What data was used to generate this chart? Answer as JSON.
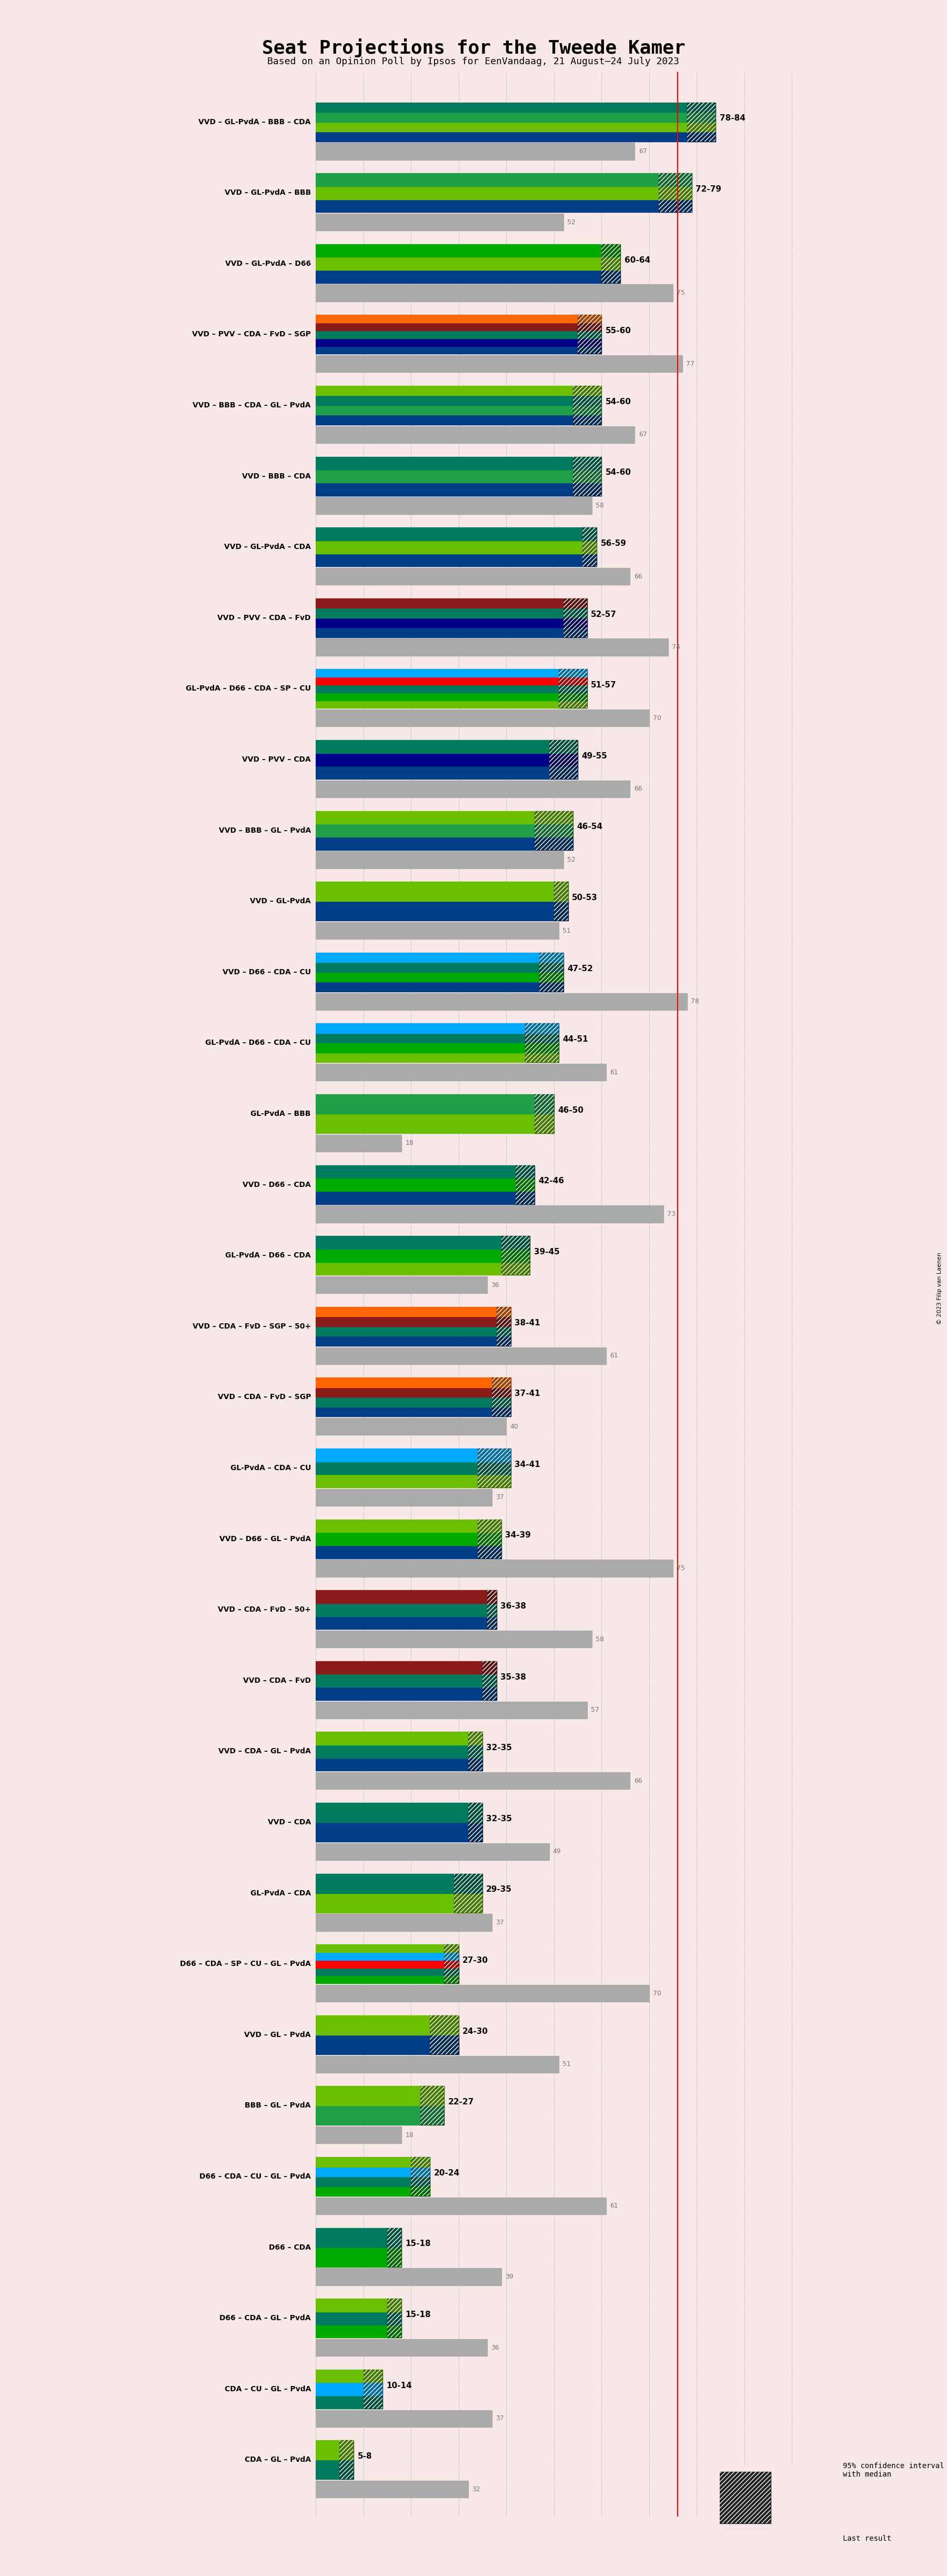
{
  "title": "Seat Projections for the Tweede Kamer",
  "subtitle": "Based on an Opinion Poll by Ipsos for EenVandaag, 21 August–24 July 2023",
  "copyright": "© 2023 Filip van Laenen",
  "background_color": "#f9e8e8",
  "bar_height": 0.35,
  "coalitions": [
    {
      "label": "VVD – GL-PvdA – BBB – CDA",
      "range": [
        78,
        84
      ],
      "last": 67,
      "parties": [
        "VVD",
        "GL",
        "BBB",
        "CDA"
      ]
    },
    {
      "label": "VVD – GL-PvdA – BBB",
      "range": [
        72,
        79
      ],
      "last": 52,
      "parties": [
        "VVD",
        "GL",
        "BBB"
      ]
    },
    {
      "label": "VVD – GL-PvdA – D66",
      "range": [
        60,
        64
      ],
      "last": 75,
      "parties": [
        "VVD",
        "GL",
        "D66"
      ]
    },
    {
      "label": "VVD – PVV – CDA – FvD – SGP",
      "range": [
        55,
        60
      ],
      "last": 77,
      "parties": [
        "VVD",
        "PVV",
        "CDA",
        "FvD",
        "SGP"
      ]
    },
    {
      "label": "VVD – BBB – CDA – GL – PvdA",
      "range": [
        54,
        60
      ],
      "last": 67,
      "parties": [
        "VVD",
        "BBB",
        "CDA",
        "GL"
      ]
    },
    {
      "label": "VVD – BBB – CDA",
      "range": [
        54,
        60
      ],
      "last": 58,
      "parties": [
        "VVD",
        "BBB",
        "CDA"
      ]
    },
    {
      "label": "VVD – GL-PvdA – CDA",
      "range": [
        56,
        59
      ],
      "last": 66,
      "parties": [
        "VVD",
        "GL",
        "CDA"
      ]
    },
    {
      "label": "VVD – PVV – CDA – FvD",
      "range": [
        52,
        57
      ],
      "last": 74,
      "parties": [
        "VVD",
        "PVV",
        "CDA",
        "FvD"
      ]
    },
    {
      "label": "GL-PvdA – D66 – CDA – SP – CU",
      "range": [
        51,
        57
      ],
      "last": 70,
      "parties": [
        "GL",
        "D66",
        "CDA",
        "SP",
        "CU"
      ]
    },
    {
      "label": "VVD – PVV – CDA",
      "range": [
        49,
        55
      ],
      "last": 66,
      "parties": [
        "VVD",
        "PVV",
        "CDA"
      ]
    },
    {
      "label": "VVD – BBB – GL – PvdA",
      "range": [
        46,
        54
      ],
      "last": 52,
      "parties": [
        "VVD",
        "BBB",
        "GL"
      ]
    },
    {
      "label": "VVD – GL-PvdA",
      "range": [
        50,
        53
      ],
      "last": 51,
      "parties": [
        "VVD",
        "GL"
      ]
    },
    {
      "label": "VVD – D66 – CDA – CU",
      "range": [
        47,
        52
      ],
      "last": 78,
      "parties": [
        "VVD",
        "D66",
        "CDA",
        "CU"
      ],
      "underline": true
    },
    {
      "label": "GL-PvdA – D66 – CDA – CU",
      "range": [
        44,
        51
      ],
      "last": 61,
      "parties": [
        "GL",
        "D66",
        "CDA",
        "CU"
      ]
    },
    {
      "label": "GL-PvdA – BBB",
      "range": [
        46,
        50
      ],
      "last": 18,
      "parties": [
        "GL",
        "BBB"
      ]
    },
    {
      "label": "VVD – D66 – CDA",
      "range": [
        42,
        46
      ],
      "last": 73,
      "parties": [
        "VVD",
        "D66",
        "CDA"
      ]
    },
    {
      "label": "GL-PvdA – D66 – CDA",
      "range": [
        39,
        45
      ],
      "last": 36,
      "parties": [
        "GL",
        "D66",
        "CDA"
      ]
    },
    {
      "label": "VVD – CDA – FvD – SGP – 50+",
      "range": [
        38,
        41
      ],
      "last": 61,
      "parties": [
        "VVD",
        "CDA",
        "FvD",
        "SGP"
      ]
    },
    {
      "label": "VVD – CDA – FvD – SGP",
      "range": [
        37,
        41
      ],
      "last": 40,
      "parties": [
        "VVD",
        "CDA",
        "FvD",
        "SGP"
      ]
    },
    {
      "label": "GL-PvdA – CDA – CU",
      "range": [
        34,
        41
      ],
      "last": 37,
      "parties": [
        "GL",
        "CDA",
        "CU"
      ]
    },
    {
      "label": "VVD – D66 – GL – PvdA",
      "range": [
        34,
        39
      ],
      "last": 75,
      "parties": [
        "VVD",
        "D66",
        "GL"
      ]
    },
    {
      "label": "VVD – CDA – FvD – 50+",
      "range": [
        36,
        38
      ],
      "last": 58,
      "parties": [
        "VVD",
        "CDA",
        "FvD"
      ]
    },
    {
      "label": "VVD – CDA – FvD",
      "range": [
        35,
        38
      ],
      "last": 57,
      "parties": [
        "VVD",
        "CDA",
        "FvD"
      ]
    },
    {
      "label": "VVD – CDA – GL – PvdA",
      "range": [
        32,
        35
      ],
      "last": 66,
      "parties": [
        "VVD",
        "CDA",
        "GL"
      ]
    },
    {
      "label": "VVD – CDA",
      "range": [
        32,
        35
      ],
      "last": 49,
      "parties": [
        "VVD",
        "CDA"
      ]
    },
    {
      "label": "GL-PvdA – CDA",
      "range": [
        29,
        35
      ],
      "last": 37,
      "parties": [
        "GL",
        "CDA"
      ]
    },
    {
      "label": "D66 – CDA – SP – CU – GL – PvdA",
      "range": [
        27,
        30
      ],
      "last": 70,
      "parties": [
        "D66",
        "CDA",
        "SP",
        "CU",
        "GL"
      ]
    },
    {
      "label": "VVD – GL – PvdA",
      "range": [
        24,
        30
      ],
      "last": 51,
      "parties": [
        "VVD",
        "GL"
      ]
    },
    {
      "label": "BBB – GL – PvdA",
      "range": [
        22,
        27
      ],
      "last": 18,
      "parties": [
        "BBB",
        "GL"
      ]
    },
    {
      "label": "D66 – CDA – CU – GL – PvdA",
      "range": [
        20,
        24
      ],
      "last": 61,
      "parties": [
        "D66",
        "CDA",
        "CU",
        "GL"
      ]
    },
    {
      "label": "D66 – CDA",
      "range": [
        15,
        18
      ],
      "last": 39,
      "parties": [
        "D66",
        "CDA"
      ]
    },
    {
      "label": "D66 – CDA – GL – PvdA",
      "range": [
        15,
        18
      ],
      "last": 36,
      "parties": [
        "D66",
        "CDA",
        "GL"
      ]
    },
    {
      "label": "CDA – CU – GL – PvdA",
      "range": [
        10,
        14
      ],
      "last": 37,
      "parties": [
        "CDA",
        "CU",
        "GL"
      ]
    },
    {
      "label": "CDA – GL – PvdA",
      "range": [
        5,
        8
      ],
      "last": 32,
      "parties": [
        "CDA",
        "GL"
      ]
    }
  ],
  "party_colors": {
    "VVD": "#003f87",
    "GL": "#5ab000",
    "BBB": "#1e9f48",
    "CDA": "#007b5e",
    "D66": "#009900",
    "PVV": "#003366",
    "FvD": "#8b0000",
    "SGP": "#ff6600",
    "SP": "#ff0000",
    "CU": "#00aaff",
    "50+": "#8b0000",
    "PvdA": "#cc0000"
  },
  "majority_line": 76,
  "xmax": 100,
  "xmin": 0,
  "tick_interval": 10
}
